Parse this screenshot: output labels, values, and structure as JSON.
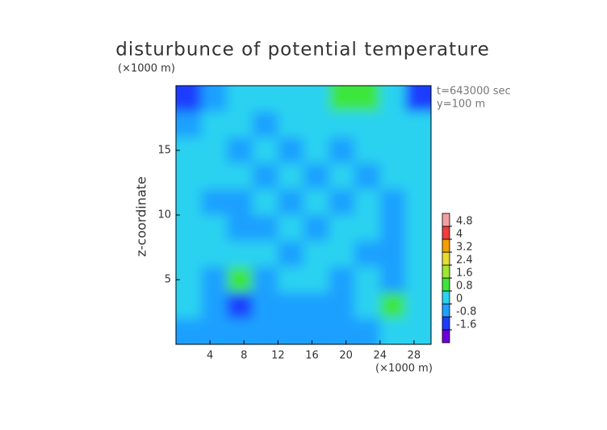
{
  "chart_data": {
    "type": "contour",
    "title": "disturbunce of potential temperature",
    "y_unit": "(×1000 m)",
    "x_unit": "(×1000 m)",
    "ylabel": "z-coordinate",
    "annotations": [
      "t=643000 sec",
      "y=100 m"
    ],
    "xlim": [
      0,
      30
    ],
    "ylim": [
      0,
      20
    ],
    "xticks": [
      4,
      8,
      12,
      16,
      20,
      24,
      28
    ],
    "yticks": [
      5,
      10,
      15
    ],
    "levels": [
      -1.6,
      -0.8,
      0,
      0.8,
      1.6,
      2.4,
      3.2,
      4,
      4.8
    ],
    "colors": [
      "#6e00dc",
      "#1e3cff",
      "#1ea0ff",
      "#2ad2f0",
      "#3ce63c",
      "#a0e632",
      "#e6dc32",
      "#f0a000",
      "#f03c3c",
      "#f0a0a0"
    ],
    "z": [
      [
        -1.0,
        -0.3,
        0,
        0.2,
        0,
        0.3,
        0.9,
        0.9,
        0.3,
        -1.2
      ],
      [
        -0.4,
        0.2,
        0.2,
        -0.3,
        0.2,
        0.2,
        0.5,
        0.5,
        0.2,
        0
      ],
      [
        0.1,
        0.2,
        -0.6,
        0.1,
        -0.3,
        0,
        -0.5,
        0.2,
        0,
        0.2
      ],
      [
        0.2,
        0,
        0.1,
        -0.5,
        0.1,
        -0.5,
        0.1,
        -0.5,
        0.1,
        0.2
      ],
      [
        0.2,
        -0.3,
        -0.6,
        0,
        -0.4,
        0,
        -0.5,
        0.1,
        -0.5,
        0.2
      ],
      [
        0.1,
        0,
        -0.2,
        -0.6,
        0.1,
        -0.5,
        0,
        0.1,
        -0.4,
        0.1
      ],
      [
        0.2,
        0,
        0.2,
        0.1,
        -0.5,
        0.1,
        0.2,
        -0.2,
        -0.6,
        0
      ],
      [
        0.5,
        -0.4,
        1.0,
        -0.3,
        0.1,
        0,
        -0.3,
        0.4,
        -0.2,
        0.1
      ],
      [
        0.3,
        -0.7,
        -0.9,
        -0.5,
        -0.4,
        -0.3,
        -0.4,
        0.7,
        0.9,
        0.6
      ],
      [
        -0.3,
        -0.4,
        -0.7,
        -0.8,
        -0.6,
        -0.4,
        -0.3,
        -0.2,
        0.2,
        0
      ]
    ]
  }
}
